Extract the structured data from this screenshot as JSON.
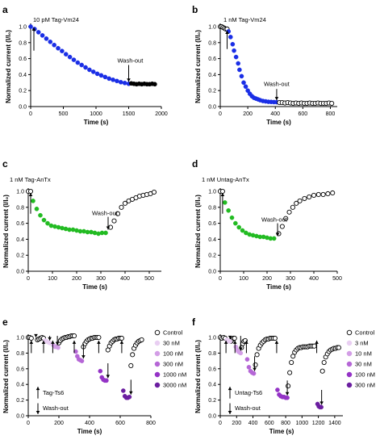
{
  "chart_data": [
    {
      "panel": "a",
      "type": "scatter",
      "annotation": "10 pM Tag-Vm24",
      "washout_label": "Wash-out",
      "xlabel": "Time (s)",
      "ylabel": "Normalized current (I/I₀)",
      "xlim": [
        0,
        2000
      ],
      "ylim": [
        0,
        1.0
      ],
      "xticks": [
        0,
        500,
        1000,
        1500,
        2000
      ],
      "yticks": [
        0.0,
        0.2,
        0.4,
        0.6,
        0.8,
        1.0
      ],
      "washout_x": 1500,
      "series": [
        {
          "fill": "#1a2ee6",
          "hollow": false,
          "x": [
            0,
            60,
            120,
            180,
            240,
            300,
            360,
            420,
            480,
            540,
            600,
            660,
            720,
            780,
            840,
            900,
            960,
            1020,
            1080,
            1140,
            1200,
            1260,
            1320,
            1380,
            1440,
            1500
          ],
          "y": [
            1.0,
            0.97,
            0.93,
            0.89,
            0.85,
            0.81,
            0.77,
            0.73,
            0.695,
            0.655,
            0.62,
            0.585,
            0.55,
            0.52,
            0.49,
            0.46,
            0.435,
            0.41,
            0.39,
            0.37,
            0.35,
            0.335,
            0.32,
            0.305,
            0.295,
            0.285
          ]
        },
        {
          "fill": "#000000",
          "hollow": false,
          "x": [
            1540,
            1580,
            1620,
            1660,
            1700,
            1740,
            1780,
            1820,
            1860,
            1900
          ],
          "y": [
            0.29,
            0.285,
            0.28,
            0.285,
            0.28,
            0.285,
            0.28,
            0.28,
            0.285,
            0.28
          ]
        }
      ]
    },
    {
      "panel": "b",
      "type": "scatter",
      "annotation": "1 nM Tag-Vm24",
      "washout_label": "Wash-out",
      "xlabel": "Time (s)",
      "ylabel": "Normalized current (I/I₀)",
      "xlim": [
        0,
        850
      ],
      "ylim": [
        0,
        1.0
      ],
      "xticks": [
        0,
        200,
        400,
        600,
        800
      ],
      "yticks": [
        0.0,
        0.2,
        0.4,
        0.6,
        0.8,
        1.0
      ],
      "stim_x": 50,
      "washout_x": 410,
      "series": [
        {
          "fill": "#ffffff",
          "hollow": true,
          "x": [
            0,
            10,
            20,
            30,
            40,
            50
          ],
          "y": [
            1.0,
            1.0,
            0.99,
            0.98,
            0.97,
            0.97
          ]
        },
        {
          "fill": "#1a2ee6",
          "hollow": false,
          "x": [
            60,
            75,
            90,
            100,
            115,
            130,
            140,
            155,
            170,
            185,
            200,
            215,
            230,
            245,
            260,
            275,
            290,
            310,
            330,
            350,
            370,
            390,
            410
          ],
          "y": [
            0.94,
            0.87,
            0.78,
            0.7,
            0.62,
            0.54,
            0.46,
            0.38,
            0.3,
            0.25,
            0.2,
            0.16,
            0.13,
            0.11,
            0.1,
            0.09,
            0.08,
            0.07,
            0.065,
            0.06,
            0.058,
            0.056,
            0.055
          ]
        },
        {
          "fill": "#ffffff",
          "hollow": true,
          "x": [
            430,
            450,
            470,
            490,
            510,
            530,
            550,
            570,
            590,
            610,
            630,
            650,
            670,
            690,
            710,
            730,
            750,
            770,
            790,
            810
          ],
          "y": [
            0.05,
            0.05,
            0.045,
            0.05,
            0.045,
            0.04,
            0.045,
            0.04,
            0.045,
            0.04,
            0.04,
            0.045,
            0.04,
            0.04,
            0.045,
            0.04,
            0.04,
            0.04,
            0.045,
            0.04
          ]
        }
      ]
    },
    {
      "panel": "c",
      "type": "scatter",
      "annotation": "1 nM Tag-AnTx",
      "washout_label": "Wash-out",
      "xlabel": "Time (s)",
      "ylabel": "Normalized current (I/I₀)",
      "xlim": [
        0,
        550
      ],
      "ylim": [
        0,
        1.0
      ],
      "xticks": [
        0,
        100,
        200,
        300,
        400,
        500
      ],
      "yticks": [
        0.0,
        0.2,
        0.4,
        0.6,
        0.8,
        1.0
      ],
      "stim_x": 10,
      "washout_x": 330,
      "series": [
        {
          "fill": "#ffffff",
          "hollow": true,
          "x": [
            0,
            10
          ],
          "y": [
            1.0,
            1.0
          ]
        },
        {
          "fill": "#22bb22",
          "hollow": false,
          "x": [
            20,
            35,
            50,
            65,
            80,
            95,
            110,
            125,
            140,
            155,
            170,
            185,
            200,
            215,
            230,
            245,
            260,
            275,
            290,
            305,
            320
          ],
          "y": [
            0.88,
            0.78,
            0.7,
            0.64,
            0.6,
            0.57,
            0.56,
            0.55,
            0.54,
            0.53,
            0.52,
            0.52,
            0.51,
            0.5,
            0.5,
            0.49,
            0.49,
            0.48,
            0.47,
            0.48,
            0.48
          ]
        },
        {
          "fill": "#ffffff",
          "hollow": true,
          "x": [
            340,
            355,
            370,
            385,
            400,
            415,
            430,
            445,
            460,
            475,
            490,
            505,
            520
          ],
          "y": [
            0.55,
            0.63,
            0.72,
            0.8,
            0.85,
            0.88,
            0.9,
            0.92,
            0.94,
            0.95,
            0.96,
            0.97,
            0.99
          ]
        }
      ]
    },
    {
      "panel": "d",
      "type": "scatter",
      "annotation": "1 nM Untag-AnTx",
      "washout_label": "Wash-out",
      "xlabel": "Time (s)",
      "ylabel": "Normalized current (I/I₀)",
      "xlim": [
        0,
        500
      ],
      "ylim": [
        0,
        1.0
      ],
      "xticks": [
        0,
        100,
        200,
        300,
        400,
        500
      ],
      "yticks": [
        0.0,
        0.2,
        0.4,
        0.6,
        0.8,
        1.0
      ],
      "stim_x": 10,
      "washout_x": 245,
      "series": [
        {
          "fill": "#ffffff",
          "hollow": true,
          "x": [
            0,
            10
          ],
          "y": [
            1.0,
            1.0
          ]
        },
        {
          "fill": "#22bb22",
          "hollow": false,
          "x": [
            20,
            35,
            50,
            65,
            80,
            95,
            110,
            125,
            140,
            155,
            170,
            185,
            200,
            215,
            230
          ],
          "y": [
            0.86,
            0.76,
            0.67,
            0.6,
            0.55,
            0.51,
            0.48,
            0.46,
            0.45,
            0.44,
            0.43,
            0.43,
            0.42,
            0.41,
            0.41
          ]
        },
        {
          "fill": "#ffffff",
          "hollow": true,
          "x": [
            250,
            265,
            280,
            295,
            310,
            325,
            340,
            360,
            380,
            400,
            420,
            440,
            460,
            480
          ],
          "y": [
            0.47,
            0.56,
            0.66,
            0.74,
            0.8,
            0.85,
            0.88,
            0.91,
            0.93,
            0.95,
            0.96,
            0.96,
            0.97,
            0.98
          ]
        }
      ]
    },
    {
      "panel": "e",
      "type": "scatter",
      "annotation_stim": "Tag-Ts6",
      "annotation_wash": "Wash-out",
      "xlabel": "Time (s)",
      "ylabel": "Normalized current (I/I₀)",
      "xlim": [
        0,
        800
      ],
      "ylim": [
        0,
        1.0
      ],
      "xticks": [
        0,
        200,
        400,
        600,
        800
      ],
      "yticks": [
        0.0,
        0.2,
        0.4,
        0.6,
        0.8,
        1.0
      ],
      "up_arrows": [
        20,
        100,
        160,
        300,
        460,
        610
      ],
      "down_arrows": [
        50,
        140,
        190,
        360,
        520,
        670
      ],
      "legend": [
        {
          "label": "Control",
          "fill": "#ffffff",
          "hollow": true
        },
        {
          "label": "30 nM",
          "fill": "#e9cff2",
          "hollow": false
        },
        {
          "label": "100 nM",
          "fill": "#d39ee6",
          "hollow": false
        },
        {
          "label": "300 nM",
          "fill": "#b566d6",
          "hollow": false
        },
        {
          "label": "1000 nM",
          "fill": "#9433c6",
          "hollow": false
        },
        {
          "label": "3000 nM",
          "fill": "#6b1ea0",
          "hollow": false
        }
      ],
      "series": [
        {
          "fill": "#ffffff",
          "hollow": true,
          "x": [
            0,
            10,
            20,
            60,
            70,
            80,
            90,
            100,
            200,
            210,
            220,
            230,
            240,
            250,
            260,
            270,
            280,
            290,
            300,
            360,
            370,
            380,
            390,
            400,
            410,
            420,
            430,
            440,
            450,
            460,
            520,
            530,
            540,
            550,
            560,
            570,
            580,
            590,
            600,
            610,
            670,
            680,
            690,
            700,
            710,
            720,
            730,
            740
          ],
          "y": [
            1.0,
            1.0,
            0.99,
            0.97,
            0.98,
            0.99,
            1.0,
            0.99,
            0.93,
            0.96,
            0.98,
            0.99,
            1.0,
            1.0,
            1.01,
            1.01,
            1.02,
            1.02,
            1.02,
            0.88,
            0.92,
            0.95,
            0.97,
            0.98,
            0.99,
            0.99,
            1.0,
            1.0,
            1.0,
            1.0,
            0.84,
            0.89,
            0.93,
            0.95,
            0.97,
            0.98,
            0.98,
            0.99,
            0.99,
            0.99,
            0.64,
            0.78,
            0.86,
            0.9,
            0.93,
            0.95,
            0.96,
            0.97
          ]
        },
        {
          "fill": "#e9cff2",
          "hollow": false,
          "x": [
            110,
            120,
            130,
            140
          ],
          "y": [
            0.96,
            0.95,
            0.94,
            0.93
          ]
        },
        {
          "fill": "#d39ee6",
          "hollow": false,
          "x": [
            165,
            175,
            185,
            195
          ],
          "y": [
            0.9,
            0.88,
            0.88,
            0.87
          ]
        },
        {
          "fill": "#b566d6",
          "hollow": false,
          "x": [
            310,
            320,
            330,
            340,
            350
          ],
          "y": [
            0.82,
            0.76,
            0.72,
            0.71,
            0.7
          ]
        },
        {
          "fill": "#9433c6",
          "hollow": false,
          "x": [
            470,
            480,
            490,
            500,
            510
          ],
          "y": [
            0.57,
            0.49,
            0.46,
            0.45,
            0.45
          ]
        },
        {
          "fill": "#6b1ea0",
          "hollow": false,
          "x": [
            620,
            630,
            640,
            650,
            660
          ],
          "y": [
            0.32,
            0.25,
            0.23,
            0.23,
            0.24
          ]
        }
      ]
    },
    {
      "panel": "f",
      "type": "scatter",
      "annotation_stim": "Untag-Ts6",
      "annotation_wash": "Wash-out",
      "xlabel": "Time (s)",
      "ylabel": "Normalized current (I/I₀)",
      "xlim": [
        0,
        1500
      ],
      "ylim": [
        0,
        1.0
      ],
      "xticks": [
        0,
        200,
        400,
        600,
        800,
        1000,
        1200,
        1400
      ],
      "yticks": [
        0.0,
        0.2,
        0.4,
        0.6,
        0.8,
        1.0
      ],
      "up_arrows": [
        70,
        180,
        320,
        690,
        1180
      ],
      "down_arrows": [
        120,
        250,
        420,
        820,
        1240
      ],
      "legend": [
        {
          "label": "Control",
          "fill": "#ffffff",
          "hollow": true
        },
        {
          "label": "3 nM",
          "fill": "#e9cff2",
          "hollow": false
        },
        {
          "label": "10 nM",
          "fill": "#d39ee6",
          "hollow": false
        },
        {
          "label": "30 nM",
          "fill": "#b566d6",
          "hollow": false
        },
        {
          "label": "100 nM",
          "fill": "#9433c6",
          "hollow": false
        },
        {
          "label": "300 nM",
          "fill": "#6b1ea0",
          "hollow": false
        }
      ],
      "series": [
        {
          "fill": "#ffffff",
          "hollow": true,
          "x": [
            0,
            20,
            40,
            60,
            130,
            145,
            160,
            175,
            260,
            275,
            290,
            305,
            430,
            450,
            470,
            490,
            510,
            530,
            550,
            570,
            590,
            610,
            630,
            650,
            670,
            830,
            850,
            870,
            890,
            910,
            930,
            950,
            970,
            990,
            1010,
            1030,
            1050,
            1070,
            1090,
            1110,
            1130,
            1150,
            1250,
            1270,
            1290,
            1310,
            1330,
            1350,
            1370,
            1390,
            1410,
            1430,
            1450
          ],
          "y": [
            1.0,
            0.99,
            1.0,
            0.99,
            0.95,
            0.97,
            0.99,
            0.99,
            0.87,
            0.92,
            0.95,
            0.96,
            0.65,
            0.78,
            0.86,
            0.9,
            0.93,
            0.95,
            0.97,
            0.98,
            0.98,
            0.99,
            0.99,
            0.99,
            0.99,
            0.38,
            0.55,
            0.68,
            0.76,
            0.81,
            0.84,
            0.86,
            0.87,
            0.87,
            0.88,
            0.88,
            0.88,
            0.88,
            0.89,
            0.89,
            0.89,
            0.89,
            0.57,
            0.68,
            0.75,
            0.79,
            0.82,
            0.84,
            0.85,
            0.86,
            0.86,
            0.87,
            0.87
          ]
        },
        {
          "fill": "#e9cff2",
          "hollow": false,
          "x": [
            80,
            90,
            100,
            110,
            120
          ],
          "y": [
            0.97,
            0.96,
            0.96,
            0.95,
            0.95
          ]
        },
        {
          "fill": "#d39ee6",
          "hollow": false,
          "x": [
            190,
            205,
            220,
            235,
            250
          ],
          "y": [
            0.88,
            0.84,
            0.82,
            0.81,
            0.8
          ]
        },
        {
          "fill": "#b566d6",
          "hollow": false,
          "x": [
            330,
            350,
            370,
            390,
            410
          ],
          "y": [
            0.72,
            0.62,
            0.57,
            0.55,
            0.54
          ]
        },
        {
          "fill": "#9433c6",
          "hollow": false,
          "x": [
            700,
            720,
            740,
            760,
            780,
            800,
            820
          ],
          "y": [
            0.33,
            0.27,
            0.25,
            0.24,
            0.24,
            0.23,
            0.23
          ]
        },
        {
          "fill": "#6b1ea0",
          "hollow": false,
          "x": [
            1190,
            1205,
            1220,
            1235
          ],
          "y": [
            0.15,
            0.12,
            0.11,
            0.11
          ]
        }
      ]
    }
  ]
}
